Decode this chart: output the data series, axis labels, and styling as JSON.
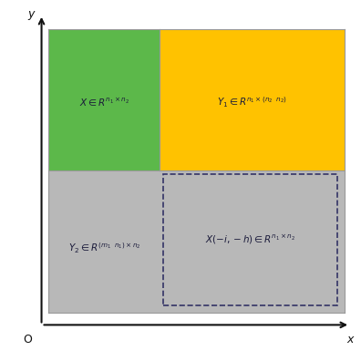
{
  "bg_color": "#ffffff",
  "green_color": "#5cb84a",
  "yellow_color": "#ffc200",
  "gray_color": "#b8b8b8",
  "dashed_box_color": "#333366",
  "axis_color": "#111111",
  "text_color": "#1a1a3a",
  "label_X": "$X\\in R^{n_1\\times n_2}$",
  "label_Y1": "$Y_1\\in R^{n_1\\times(n_2\\ \\ n_2)}$",
  "label_Y2": "$Y_2\\in R^{(m_1\\ \\ n_1)\\times n_2}$",
  "label_Xih": "$X(-i,-h)\\in R^{n_1\\times n_2}$",
  "origin_label": "O",
  "x_label": "x",
  "y_label": "y",
  "figsize": [
    3.96,
    3.96
  ],
  "dpi": 100
}
